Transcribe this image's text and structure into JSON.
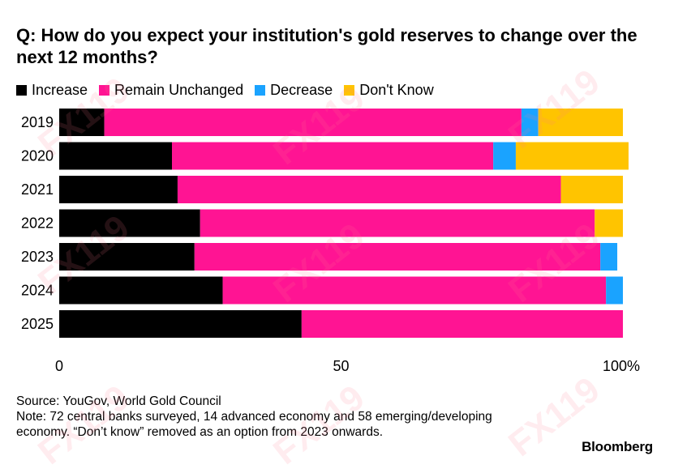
{
  "title": "Q: How do you expect your institution's gold reserves to change over the next 12 months?",
  "legend": [
    {
      "label": "Increase",
      "color": "#000000"
    },
    {
      "label": "Remain Unchanged",
      "color": "#ff1493"
    },
    {
      "label": "Decrease",
      "color": "#1aa3ff"
    },
    {
      "label": "Don't Know",
      "color": "#ffc400"
    }
  ],
  "source": "Source: YouGov, World Gold Council",
  "note": "Note: 72 central banks surveyed, 14 advanced economy and 58 emerging/developing economy. “Don’t know” removed as an option from 2023 onwards.",
  "brand": "Bloomberg",
  "watermark": "FX119",
  "chart_data": {
    "type": "bar",
    "orientation": "horizontal",
    "stacked": true,
    "title": "Q: How do you expect your institution's gold reserves to change over the next 12 months?",
    "categories": [
      "2019",
      "2020",
      "2021",
      "2022",
      "2023",
      "2024",
      "2025"
    ],
    "series": [
      {
        "name": "Increase",
        "color": "#000000",
        "values": [
          8,
          20,
          21,
          25,
          24,
          29,
          43
        ]
      },
      {
        "name": "Remain Unchanged",
        "color": "#ff1493",
        "values": [
          74,
          57,
          68,
          70,
          72,
          68,
          57
        ]
      },
      {
        "name": "Decrease",
        "color": "#1aa3ff",
        "values": [
          3,
          4,
          0,
          0,
          3,
          3,
          0
        ]
      },
      {
        "name": "Don't Know",
        "color": "#ffc400",
        "values": [
          15,
          20,
          11,
          5,
          0,
          0,
          0
        ]
      }
    ],
    "xlim": [
      0,
      100
    ],
    "xticks": [
      0,
      50,
      100
    ],
    "xtick_labels": [
      "0",
      "50",
      "100%"
    ],
    "xlabel": "",
    "ylabel": "",
    "grid": false,
    "legend_position": "top-left"
  }
}
